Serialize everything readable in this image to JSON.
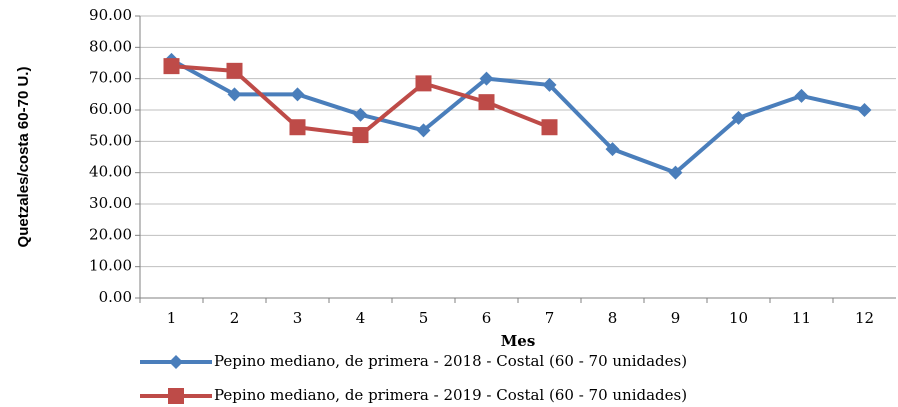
{
  "chart_data": {
    "type": "line",
    "x_label": "Mes",
    "y_label": "Quetzales/costa 60-70 U.)",
    "categories": [
      "1",
      "2",
      "3",
      "4",
      "5",
      "6",
      "7",
      "8",
      "9",
      "10",
      "11",
      "12"
    ],
    "series": [
      {
        "name": "Pepino mediano, de primera - 2018 - Costal (60 - 70 unidades)",
        "color": "#4a7ebb",
        "marker": "diamond",
        "values": [
          76,
          65,
          65,
          58.5,
          53.5,
          70,
          68,
          47.5,
          40,
          57.5,
          64.5,
          60
        ]
      },
      {
        "name": "Pepino mediano, de primera - 2019 - Costal (60 - 70 unidades)",
        "color": "#be4b48",
        "marker": "square",
        "values": [
          74,
          72.5,
          54.5,
          52,
          68.5,
          62.5,
          54.5,
          null,
          null,
          null,
          null,
          null
        ]
      }
    ],
    "ylim": [
      0,
      90
    ],
    "yticks": [
      {
        "value": 0,
        "label": "0.00"
      },
      {
        "value": 10,
        "label": "10.00"
      },
      {
        "value": 20,
        "label": "20.00"
      },
      {
        "value": 30,
        "label": "30.00"
      },
      {
        "value": 40,
        "label": "40.00"
      },
      {
        "value": 50,
        "label": "50.00"
      },
      {
        "value": 60,
        "label": "60.00"
      },
      {
        "value": 70,
        "label": "70.00"
      },
      {
        "value": 80,
        "label": "80.00"
      },
      {
        "value": 90,
        "label": "90.00"
      }
    ],
    "grid": true
  }
}
